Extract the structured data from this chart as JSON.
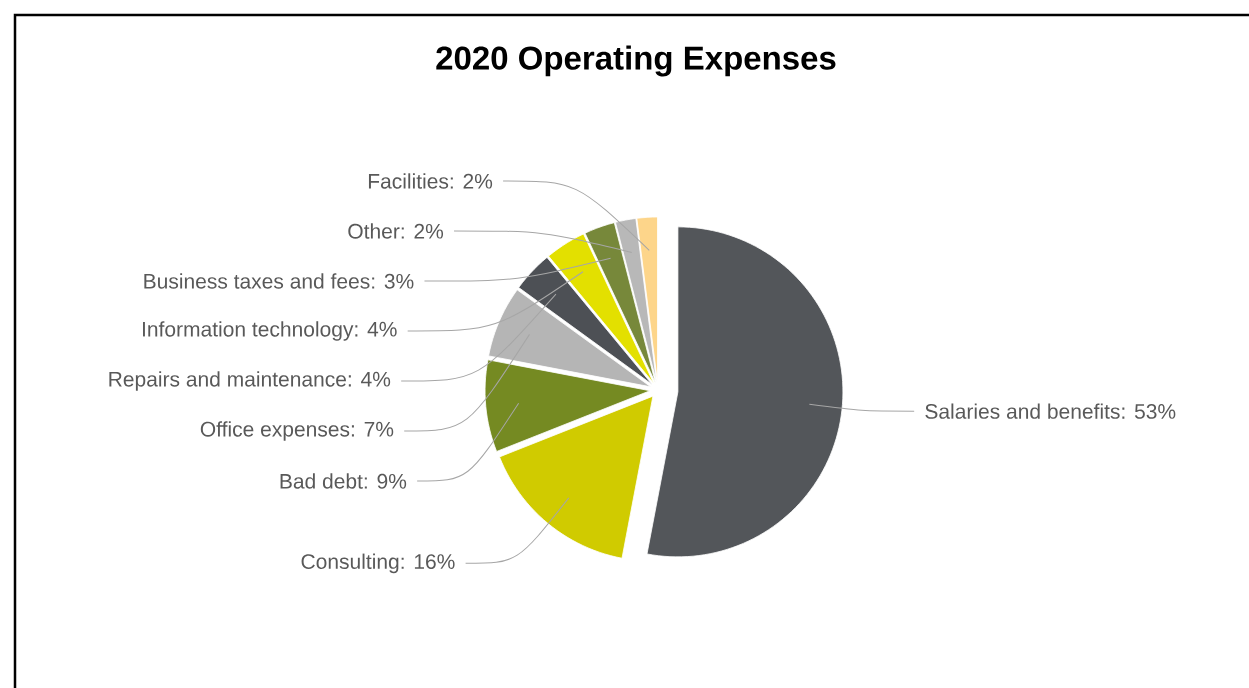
{
  "chart_data": {
    "type": "pie",
    "title": "2020 Operating Expenses",
    "categories": [
      "Salaries and benefits: 53%",
      "Consulting: 16%",
      "Bad debt: 9%",
      "Office expenses: 7%",
      "Repairs and maintenance: 4%",
      "Information technology: 4%",
      "Business taxes and fees: 3%",
      "Other: 2%",
      "Facilities: 2%"
    ],
    "values": [
      53,
      16,
      9,
      7,
      4,
      4,
      3,
      2,
      2
    ],
    "colors": [
      "#53565a",
      "#d0cb00",
      "#758a22",
      "#b5b5b5",
      "#4d5055",
      "#e3e000",
      "#77883a",
      "#b8b8b8",
      "#fdd58a"
    ]
  }
}
